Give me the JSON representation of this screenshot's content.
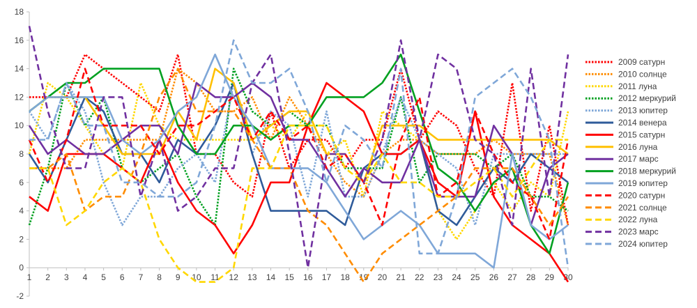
{
  "chart_data": {
    "type": "line",
    "title": "",
    "xlabel": "",
    "ylabel": "",
    "x": [
      1,
      2,
      3,
      4,
      5,
      6,
      7,
      8,
      9,
      10,
      11,
      12,
      13,
      14,
      15,
      16,
      17,
      18,
      19,
      20,
      21,
      22,
      23,
      24,
      25,
      26,
      27,
      28,
      29,
      30
    ],
    "ylim": [
      -2,
      18
    ],
    "y_ticks": [
      -2,
      0,
      2,
      4,
      6,
      8,
      10,
      12,
      14,
      16,
      18
    ],
    "grid": false,
    "legend_position": "right",
    "series": [
      {
        "name": "2009 сатурн",
        "color": "#ff0000",
        "dash": "dotted",
        "values": [
          12,
          12,
          12,
          15,
          14,
          13,
          12,
          11,
          15,
          8,
          8,
          6,
          5,
          11,
          7,
          9,
          9,
          7,
          9,
          9,
          14,
          9,
          11,
          10,
          7,
          5,
          13,
          4,
          10,
          3
        ]
      },
      {
        "name": "2010 солнце",
        "color": "#ff8c00",
        "dash": "dotted",
        "values": [
          7,
          7,
          7,
          9,
          9,
          9,
          9,
          9,
          14,
          13,
          11,
          11,
          12,
          9,
          12,
          10,
          8,
          6,
          5,
          8,
          9,
          9,
          8,
          8,
          8,
          9,
          8,
          8,
          8,
          3
        ]
      },
      {
        "name": "2011 луна",
        "color": "#ffd700",
        "dash": "dotted",
        "values": [
          8,
          13,
          12,
          10,
          8,
          7,
          13,
          10,
          9,
          9,
          9,
          9,
          9,
          10,
          9,
          11,
          8,
          9,
          5,
          11,
          10,
          9,
          4,
          2,
          4,
          6,
          4,
          6,
          5,
          11
        ]
      },
      {
        "name": "2012 меркурий",
        "color": "#00a020",
        "dash": "dotted",
        "values": [
          3,
          7,
          13,
          10,
          12,
          7,
          6,
          7,
          8,
          5,
          3,
          14,
          11,
          10,
          11,
          10,
          10,
          7,
          7,
          7,
          12,
          6,
          8,
          8,
          8,
          7,
          8,
          5,
          5,
          4
        ]
      },
      {
        "name": "2013 юпитер",
        "color": "#7fa7d8",
        "dash": "dotted",
        "values": [
          11,
          9,
          13,
          11,
          6,
          3,
          5,
          5,
          7,
          8,
          6,
          13,
          8,
          11,
          10,
          5,
          11,
          5,
          5,
          8,
          12,
          9,
          8,
          7,
          3,
          8,
          8,
          8,
          8,
          8
        ]
      },
      {
        "name": "2014 венера",
        "color": "#2f5b9a",
        "dash": "solid",
        "values": [
          8,
          6,
          9,
          12,
          11,
          8,
          8,
          6,
          9,
          8,
          10,
          13,
          8,
          4,
          4,
          4,
          4,
          3,
          7,
          8,
          8,
          9,
          4,
          3,
          5,
          7,
          6,
          8,
          7,
          6
        ]
      },
      {
        "name": "2015 сатурн",
        "color": "#ff0000",
        "dash": "solid",
        "values": [
          5,
          4,
          8,
          8,
          8,
          7,
          6,
          9,
          6,
          4,
          3,
          1,
          3,
          6,
          6,
          10,
          13,
          12,
          11,
          8,
          8,
          9,
          6,
          5,
          11,
          5,
          3,
          2,
          1,
          -1
        ]
      },
      {
        "name": "2016 луна",
        "color": "#ffc000",
        "dash": "solid",
        "values": [
          11,
          12,
          12,
          12,
          10,
          8,
          8,
          8,
          11,
          9,
          14,
          13,
          9,
          10,
          11,
          11,
          8,
          8,
          6,
          10,
          10,
          10,
          9,
          9,
          9,
          9,
          9,
          9,
          9,
          8
        ]
      },
      {
        "name": "2017 марс",
        "color": "#7030a0",
        "dash": "solid",
        "values": [
          10,
          8,
          9,
          8,
          8,
          9,
          10,
          10,
          8,
          13,
          12,
          12,
          13,
          12,
          9,
          9,
          7,
          5,
          7,
          6,
          6,
          9,
          5,
          5,
          5,
          10,
          8,
          3,
          7,
          8
        ]
      },
      {
        "name": "2018 меркурий",
        "color": "#00a020",
        "dash": "solid",
        "values": [
          11,
          12,
          13,
          13,
          14,
          14,
          14,
          14,
          10,
          8,
          8,
          10,
          10,
          9,
          10,
          10,
          12,
          12,
          12,
          13,
          15,
          11,
          7,
          6,
          4,
          6,
          7,
          3,
          1,
          6
        ]
      },
      {
        "name": "2019 юпитер",
        "color": "#7fa7d8",
        "dash": "solid",
        "values": [
          11,
          12,
          12,
          12,
          12,
          9,
          8,
          9,
          11,
          12,
          15,
          12,
          10,
          7,
          7,
          7,
          6,
          4,
          2,
          3,
          4,
          3,
          1,
          1,
          1,
          0,
          8,
          3,
          2,
          3
        ]
      },
      {
        "name": "2020 сатурн",
        "color": "#ff0000",
        "dash": "dashed",
        "values": [
          9,
          6,
          9,
          14,
          10,
          10,
          10,
          8,
          10,
          10,
          11,
          12,
          9,
          11,
          9,
          10,
          7,
          8,
          6,
          3,
          9,
          12,
          5,
          6,
          11,
          8,
          6,
          5,
          2,
          9
        ]
      },
      {
        "name": "2021 солнце",
        "color": "#ff8c00",
        "dash": "dashed",
        "values": [
          7,
          7,
          8,
          4,
          5,
          5,
          8,
          12,
          14,
          11,
          11,
          11,
          9,
          7,
          7,
          4,
          3,
          1,
          -1,
          1,
          2,
          3,
          4,
          5,
          7,
          7,
          7,
          5,
          3,
          5
        ]
      },
      {
        "name": "2022 луна",
        "color": "#ffd700",
        "dash": "dashed",
        "values": [
          7,
          7,
          3,
          4,
          6,
          7,
          6,
          2,
          0,
          -1,
          -1,
          0,
          7,
          7,
          10,
          10,
          10,
          7,
          6,
          8,
          6,
          6,
          5,
          5,
          6,
          7,
          5,
          7,
          9,
          9
        ]
      },
      {
        "name": "2023 марс",
        "color": "#7030a0",
        "dash": "dashed",
        "values": [
          17,
          11,
          7,
          7,
          12,
          12,
          5,
          9,
          4,
          5,
          7,
          7,
          13,
          15,
          8,
          0,
          8,
          8,
          6,
          9,
          16,
          9,
          15,
          14,
          9,
          8,
          3,
          14,
          5,
          15
        ]
      },
      {
        "name": "2024 юпитер",
        "color": "#7fa7d8",
        "dash": "dashed",
        "values": [
          9,
          9,
          13,
          10,
          10,
          6,
          6,
          5,
          5,
          6,
          10,
          16,
          13,
          13,
          14,
          11,
          6,
          10,
          9,
          7,
          14,
          1,
          1,
          5,
          12,
          13,
          14,
          12,
          9,
          0
        ]
      }
    ]
  }
}
